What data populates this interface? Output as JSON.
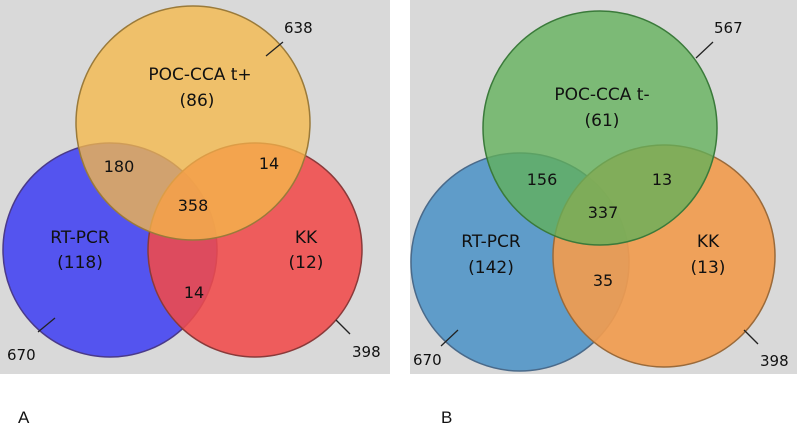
{
  "panels": [
    {
      "caption": "A",
      "circles": {
        "top": {
          "name": "POC-CCA t+",
          "only": "(86)",
          "total": "638",
          "color": "#f5b84a"
        },
        "left": {
          "name": "RT-PCR",
          "only": "(118)",
          "total": "670",
          "color": "#4d4df0"
        },
        "right": {
          "name": "KK",
          "only": "(12)",
          "total": "398",
          "color": "#f04a4a"
        }
      },
      "intersections": {
        "top_left": "180",
        "top_right": "14",
        "left_right": "14",
        "center": "358"
      }
    },
    {
      "caption": "B",
      "circles": {
        "top": {
          "name": "POC-CCA t-",
          "only": "(61)",
          "total": "567",
          "color": "#62b15a"
        },
        "left": {
          "name": "RT-PCR",
          "only": "(142)",
          "total": "670",
          "color": "#5f9cc9"
        },
        "right": {
          "name": "KK",
          "only": "(13)",
          "total": "398",
          "color": "#f19c4f"
        }
      },
      "intersections": {
        "top_left": "156",
        "top_right": "13",
        "left_right": "35",
        "center": "337"
      }
    }
  ]
}
